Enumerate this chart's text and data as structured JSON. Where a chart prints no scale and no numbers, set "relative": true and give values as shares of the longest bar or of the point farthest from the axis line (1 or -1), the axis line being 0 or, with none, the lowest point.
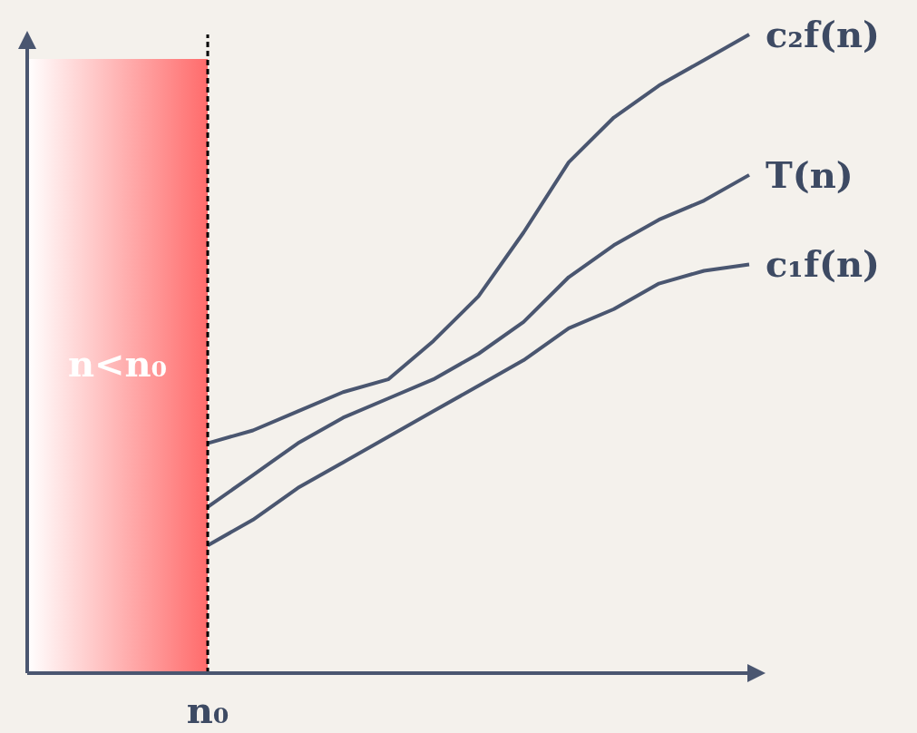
{
  "chart_data": {
    "type": "line",
    "relative": true,
    "line_style": "solid",
    "categories": [
      null,
      null,
      null,
      null,
      null,
      null,
      null,
      null,
      null,
      null,
      null,
      null,
      null,
      null,
      null,
      null,
      null
    ],
    "series": [
      {
        "name": "c₂f(n)",
        "color": "#4a5670",
        "values": [
          null,
          null,
          null,
          null,
          0.36,
          0.38,
          0.41,
          0.44,
          0.46,
          0.52,
          0.59,
          0.69,
          0.8,
          0.87,
          0.92,
          0.96,
          1
        ]
      },
      {
        "name": "T(n)",
        "color": "#4a5670",
        "values": [
          null,
          null,
          null,
          null,
          0.26,
          0.31,
          0.36,
          0.4,
          0.43,
          0.46,
          0.5,
          0.55,
          0.62,
          0.67,
          0.71,
          0.74,
          0.78
        ]
      },
      {
        "name": "c₁f(n)",
        "color": "#4a5670",
        "values": [
          null,
          null,
          null,
          null,
          0.2,
          0.24,
          0.29,
          0.33,
          0.37,
          0.41,
          0.45,
          0.49,
          0.54,
          0.57,
          0.61,
          0.63,
          0.64
        ]
      }
    ],
    "ref_lines": [
      {
        "axis": "x",
        "label": "n₀",
        "color": "#000000",
        "line_style": "dashed"
      }
    ],
    "annotations": [
      "n<n₀"
    ]
  }
}
